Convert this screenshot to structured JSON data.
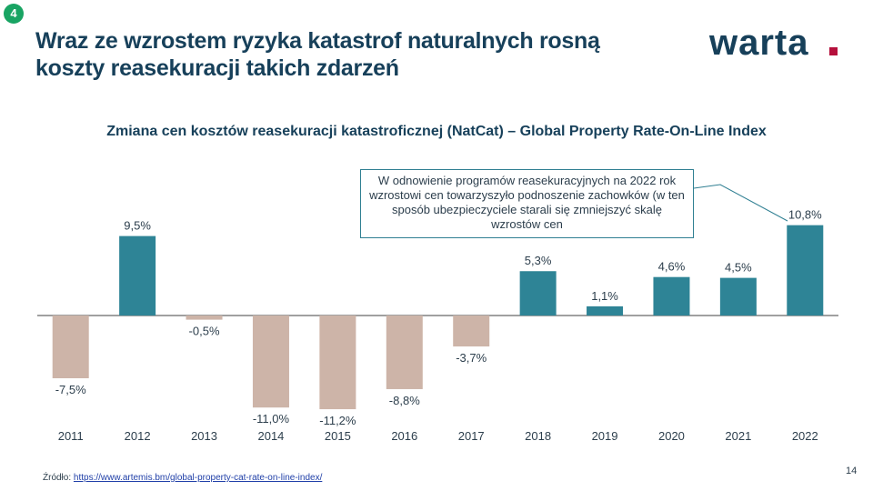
{
  "slide": {
    "badge": "4",
    "title_line1": "Wraz ze wzrostem ryzyka katastrof naturalnych rosną",
    "title_line2": "koszty reasekuracji takich zdarzeń",
    "logo_text": "warta",
    "page_number": "14",
    "source_label": "Źródło:",
    "source_link": "https://www.artemis.bm/global-property-cat-rate-on-line-index/"
  },
  "annotation": {
    "text": "W odnowienie programów reasekuracyjnych  na 2022 rok wzrostowi cen towarzyszyło podnoszenie zachowków (w ten sposób ubezpieczyciele starali się zmniejszyć skalę wzrostów cen"
  },
  "colors": {
    "positive": "#2e8496",
    "negative": "#cdb4a8",
    "badge": "#19a463",
    "title": "#17405a",
    "logo_accent": "#b5103c"
  },
  "chart_data": {
    "type": "bar",
    "title": "Zmiana cen kosztów reasekuracji katastroficznej (NatCat) – Global Property Rate-On-Line Index",
    "categories": [
      "2011",
      "2012",
      "2013",
      "2014",
      "2015",
      "2016",
      "2017",
      "2018",
      "2019",
      "2020",
      "2021",
      "2022"
    ],
    "values": [
      -7.5,
      9.5,
      -0.5,
      -11.0,
      -11.2,
      -8.8,
      -3.7,
      5.3,
      1.1,
      4.6,
      4.5,
      10.8
    ],
    "data_labels": [
      "-7,5%",
      "9,5%",
      "-0,5%",
      "-11,0%",
      "-11,2%",
      "-8,8%",
      "-3,7%",
      "5,3%",
      "1,1%",
      "4,6%",
      "4,5%",
      "10,8%"
    ],
    "xlabel": "",
    "ylabel": "",
    "ylim": [
      -12,
      12
    ],
    "grid": false,
    "legend": "none"
  }
}
